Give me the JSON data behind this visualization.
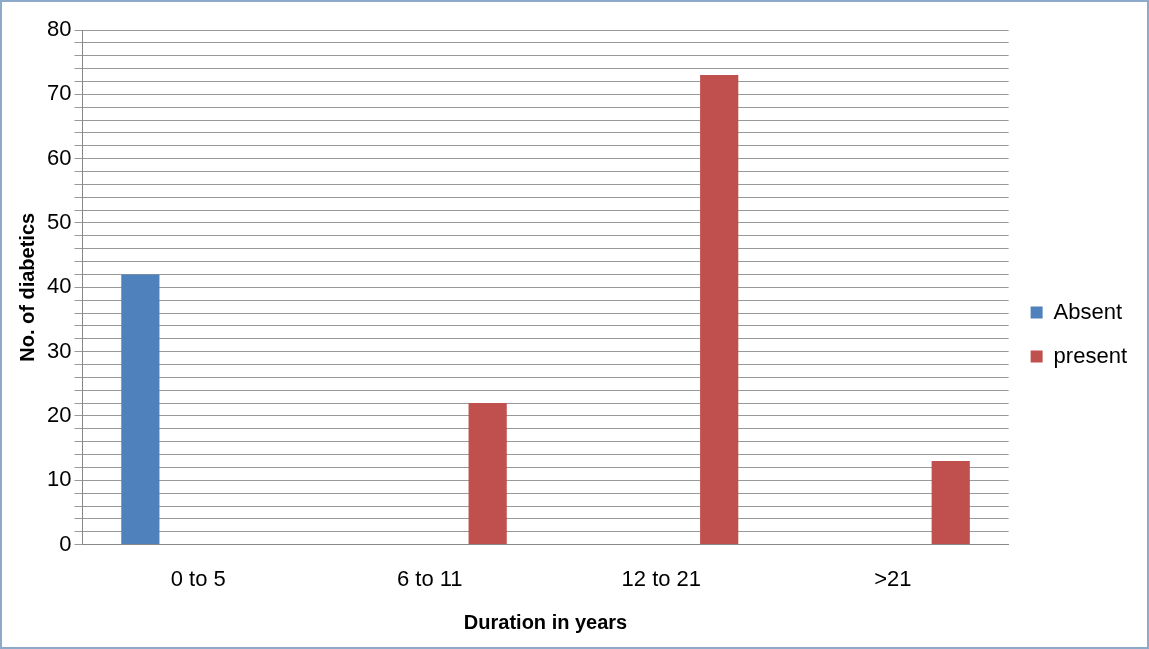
{
  "chart_data": {
    "type": "bar",
    "xlabel": "Duration in years",
    "ylabel": "No. of diabetics",
    "categories": [
      "0 to 5",
      "6 to 11",
      "12 to 21",
      ">21"
    ],
    "series": [
      {
        "name": "Absent",
        "color": "#4f81bd",
        "values": [
          42,
          null,
          null,
          null
        ]
      },
      {
        "name": "present",
        "color": "#c0504d",
        "values": [
          null,
          22,
          73,
          13
        ]
      }
    ],
    "ylim": [
      0,
      80
    ],
    "yticks": [
      0,
      {
        "value": 2,
        "label": null
      },
      {
        "value": 4,
        "label": null
      },
      {
        "value": 6,
        "label": null
      },
      {
        "value": 8,
        "label": null
      },
      10,
      {
        "value": 12,
        "label": null
      },
      {
        "value": 14,
        "label": null
      },
      {
        "value": 16,
        "label": null
      },
      {
        "value": 18,
        "label": null
      },
      20,
      {
        "value": 22,
        "label": null
      },
      {
        "value": 24,
        "label": null
      },
      {
        "value": 26,
        "label": null
      },
      {
        "value": 28,
        "label": null
      },
      30,
      {
        "value": 32,
        "label": null
      },
      {
        "value": 34,
        "label": null
      },
      {
        "value": 36,
        "label": null
      },
      {
        "value": 38,
        "label": null
      },
      40,
      {
        "value": 42,
        "label": null
      },
      {
        "value": 44,
        "label": null
      },
      {
        "value": 46,
        "label": null
      },
      {
        "value": 48,
        "label": null
      },
      50,
      {
        "value": 52,
        "label": null
      },
      {
        "value": 54,
        "label": null
      },
      {
        "value": 56,
        "label": null
      },
      {
        "value": 58,
        "label": null
      },
      60,
      {
        "value": 62,
        "label": null
      },
      {
        "value": 64,
        "label": null
      },
      {
        "value": 66,
        "label": null
      },
      {
        "value": 68,
        "label": null
      },
      70,
      {
        "value": 72,
        "label": null
      },
      {
        "value": 74,
        "label": null
      },
      {
        "value": 76,
        "label": null
      },
      {
        "value": 78,
        "label": null
      },
      80
    ],
    "grid": "y",
    "legend": "right"
  }
}
